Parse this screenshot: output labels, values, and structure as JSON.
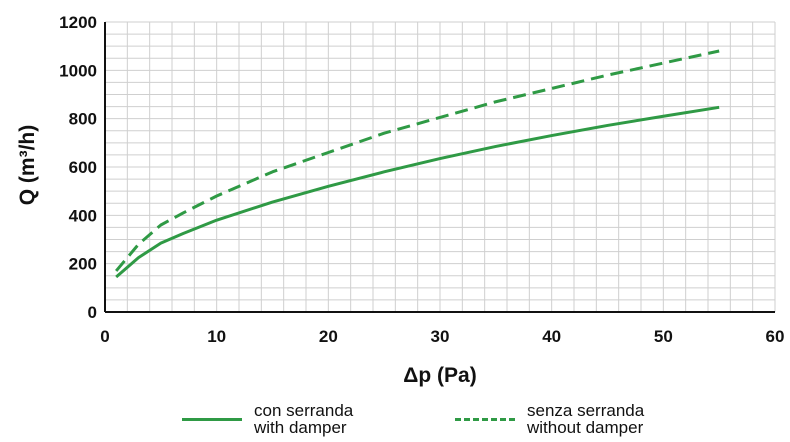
{
  "chart_data": {
    "type": "line",
    "title": "",
    "xlabel": "Δp (Pa)",
    "ylabel": "Q (m³/h)",
    "xlim": [
      0,
      60
    ],
    "ylim": [
      0,
      1200
    ],
    "xticks": [
      0,
      10,
      20,
      30,
      40,
      50,
      60
    ],
    "yticks": [
      0,
      200,
      400,
      600,
      800,
      1000,
      1200
    ],
    "grid": true,
    "legend_position": "bottom",
    "colors": {
      "line": "#2f9a45",
      "grid": "#cfcfcf"
    },
    "series": [
      {
        "name": "con serranda / with damper",
        "style": "solid",
        "x": [
          1,
          3,
          5,
          7,
          10,
          15,
          20,
          25,
          30,
          35,
          40,
          45,
          50,
          55
        ],
        "y": [
          145,
          225,
          285,
          325,
          380,
          455,
          520,
          580,
          635,
          685,
          730,
          772,
          810,
          847
        ]
      },
      {
        "name": "senza serranda / without damper",
        "style": "dashed",
        "x": [
          1,
          3,
          5,
          7,
          10,
          15,
          20,
          25,
          30,
          35,
          40,
          45,
          50,
          55
        ],
        "y": [
          170,
          280,
          360,
          410,
          480,
          580,
          660,
          740,
          805,
          870,
          925,
          980,
          1030,
          1080
        ]
      }
    ]
  },
  "legend": {
    "with_damper_line1": "con serranda",
    "with_damper_line2": "with damper",
    "without_damper_line1": "senza serranda",
    "without_damper_line2": "without damper"
  }
}
